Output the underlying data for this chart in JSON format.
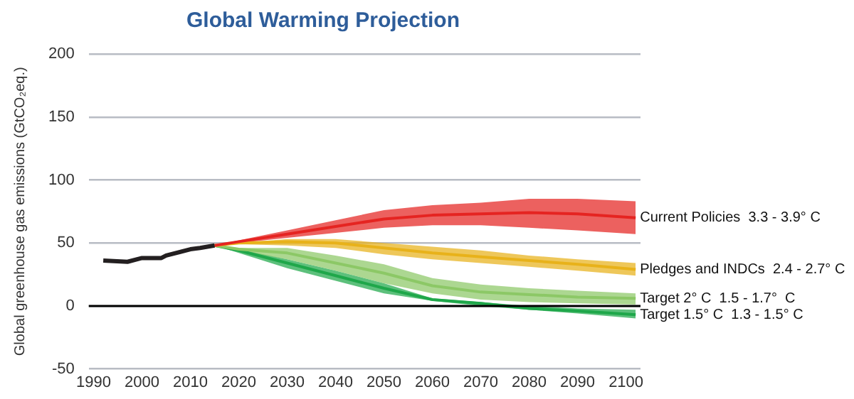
{
  "chart_data": {
    "type": "line",
    "title": "Global Warming Projection",
    "ylabel": "Global greenhouse gas emissions (GtCO₂eq.)",
    "xlim": [
      1989,
      2103
    ],
    "xticks": [
      1990,
      2000,
      2010,
      2020,
      2030,
      2040,
      2050,
      2060,
      2070,
      2080,
      2090,
      2100
    ],
    "ylim": [
      -50,
      200
    ],
    "yticks": [
      -50,
      0,
      50,
      100,
      150,
      200
    ],
    "grid": "y",
    "legend": false,
    "marker": "none",
    "ref_lines": [
      {
        "axis": "y",
        "value": 0,
        "color": "#000000"
      }
    ],
    "series": [
      {
        "color": "#231f20",
        "x": [
          1992,
          1997,
          2000,
          2004,
          2005,
          2010,
          2012,
          2015
        ],
        "values": [
          36,
          35,
          38,
          38,
          40,
          45,
          46,
          48
        ]
      },
      {
        "name": "Current Policies  3.3 - 3.9° C",
        "color": "#e52421",
        "x": [
          2015,
          2020,
          2030,
          2040,
          2050,
          2060,
          2070,
          2080,
          2090,
          2102
        ],
        "values": [
          48,
          51,
          57,
          63,
          69,
          72,
          73,
          74,
          73,
          70
        ],
        "lower": [
          48,
          50,
          54,
          58,
          62,
          64,
          64,
          62,
          60,
          57
        ],
        "upper": [
          48,
          52,
          60,
          68,
          76,
          80,
          82,
          85,
          85,
          83
        ]
      },
      {
        "name": "Pledges and INDCs  2.4 - 2.7° C",
        "color": "#e8b21a",
        "x": [
          2015,
          2020,
          2030,
          2040,
          2050,
          2060,
          2070,
          2080,
          2090,
          2102
        ],
        "values": [
          48,
          50,
          51,
          50,
          46,
          42,
          39,
          36,
          33,
          29
        ],
        "lower": [
          48,
          49,
          48,
          46,
          41,
          37,
          34,
          31,
          28,
          24
        ],
        "upper": [
          48,
          50,
          53,
          53,
          50,
          47,
          44,
          40,
          37,
          34
        ]
      },
      {
        "name": "Target 2° C  1.5 - 1.7°  C",
        "color": "#8cc866",
        "x": [
          2015,
          2020,
          2030,
          2040,
          2050,
          2060,
          2070,
          2080,
          2090,
          2102
        ],
        "values": [
          48,
          45,
          42,
          34,
          26,
          16,
          11,
          9,
          7,
          6
        ],
        "lower": [
          48,
          44,
          37,
          28,
          18,
          10,
          5,
          3,
          2,
          1
        ],
        "upper": [
          48,
          46,
          46,
          40,
          33,
          22,
          17,
          14,
          12,
          10
        ]
      },
      {
        "name": "Target 1.5° C  1.3 - 1.5° C",
        "color": "#1fa74a",
        "x": [
          2015,
          2020,
          2030,
          2040,
          2050,
          2060,
          2070,
          2080,
          2090,
          2102
        ],
        "values": [
          48,
          44,
          34,
          24,
          14,
          5,
          2,
          -2,
          -4,
          -7
        ],
        "lower": [
          48,
          42,
          30,
          20,
          10,
          4,
          0,
          -3,
          -6,
          -10
        ],
        "upper": [
          48,
          45,
          37,
          28,
          18,
          6,
          3,
          0,
          -2,
          -3
        ]
      }
    ]
  }
}
